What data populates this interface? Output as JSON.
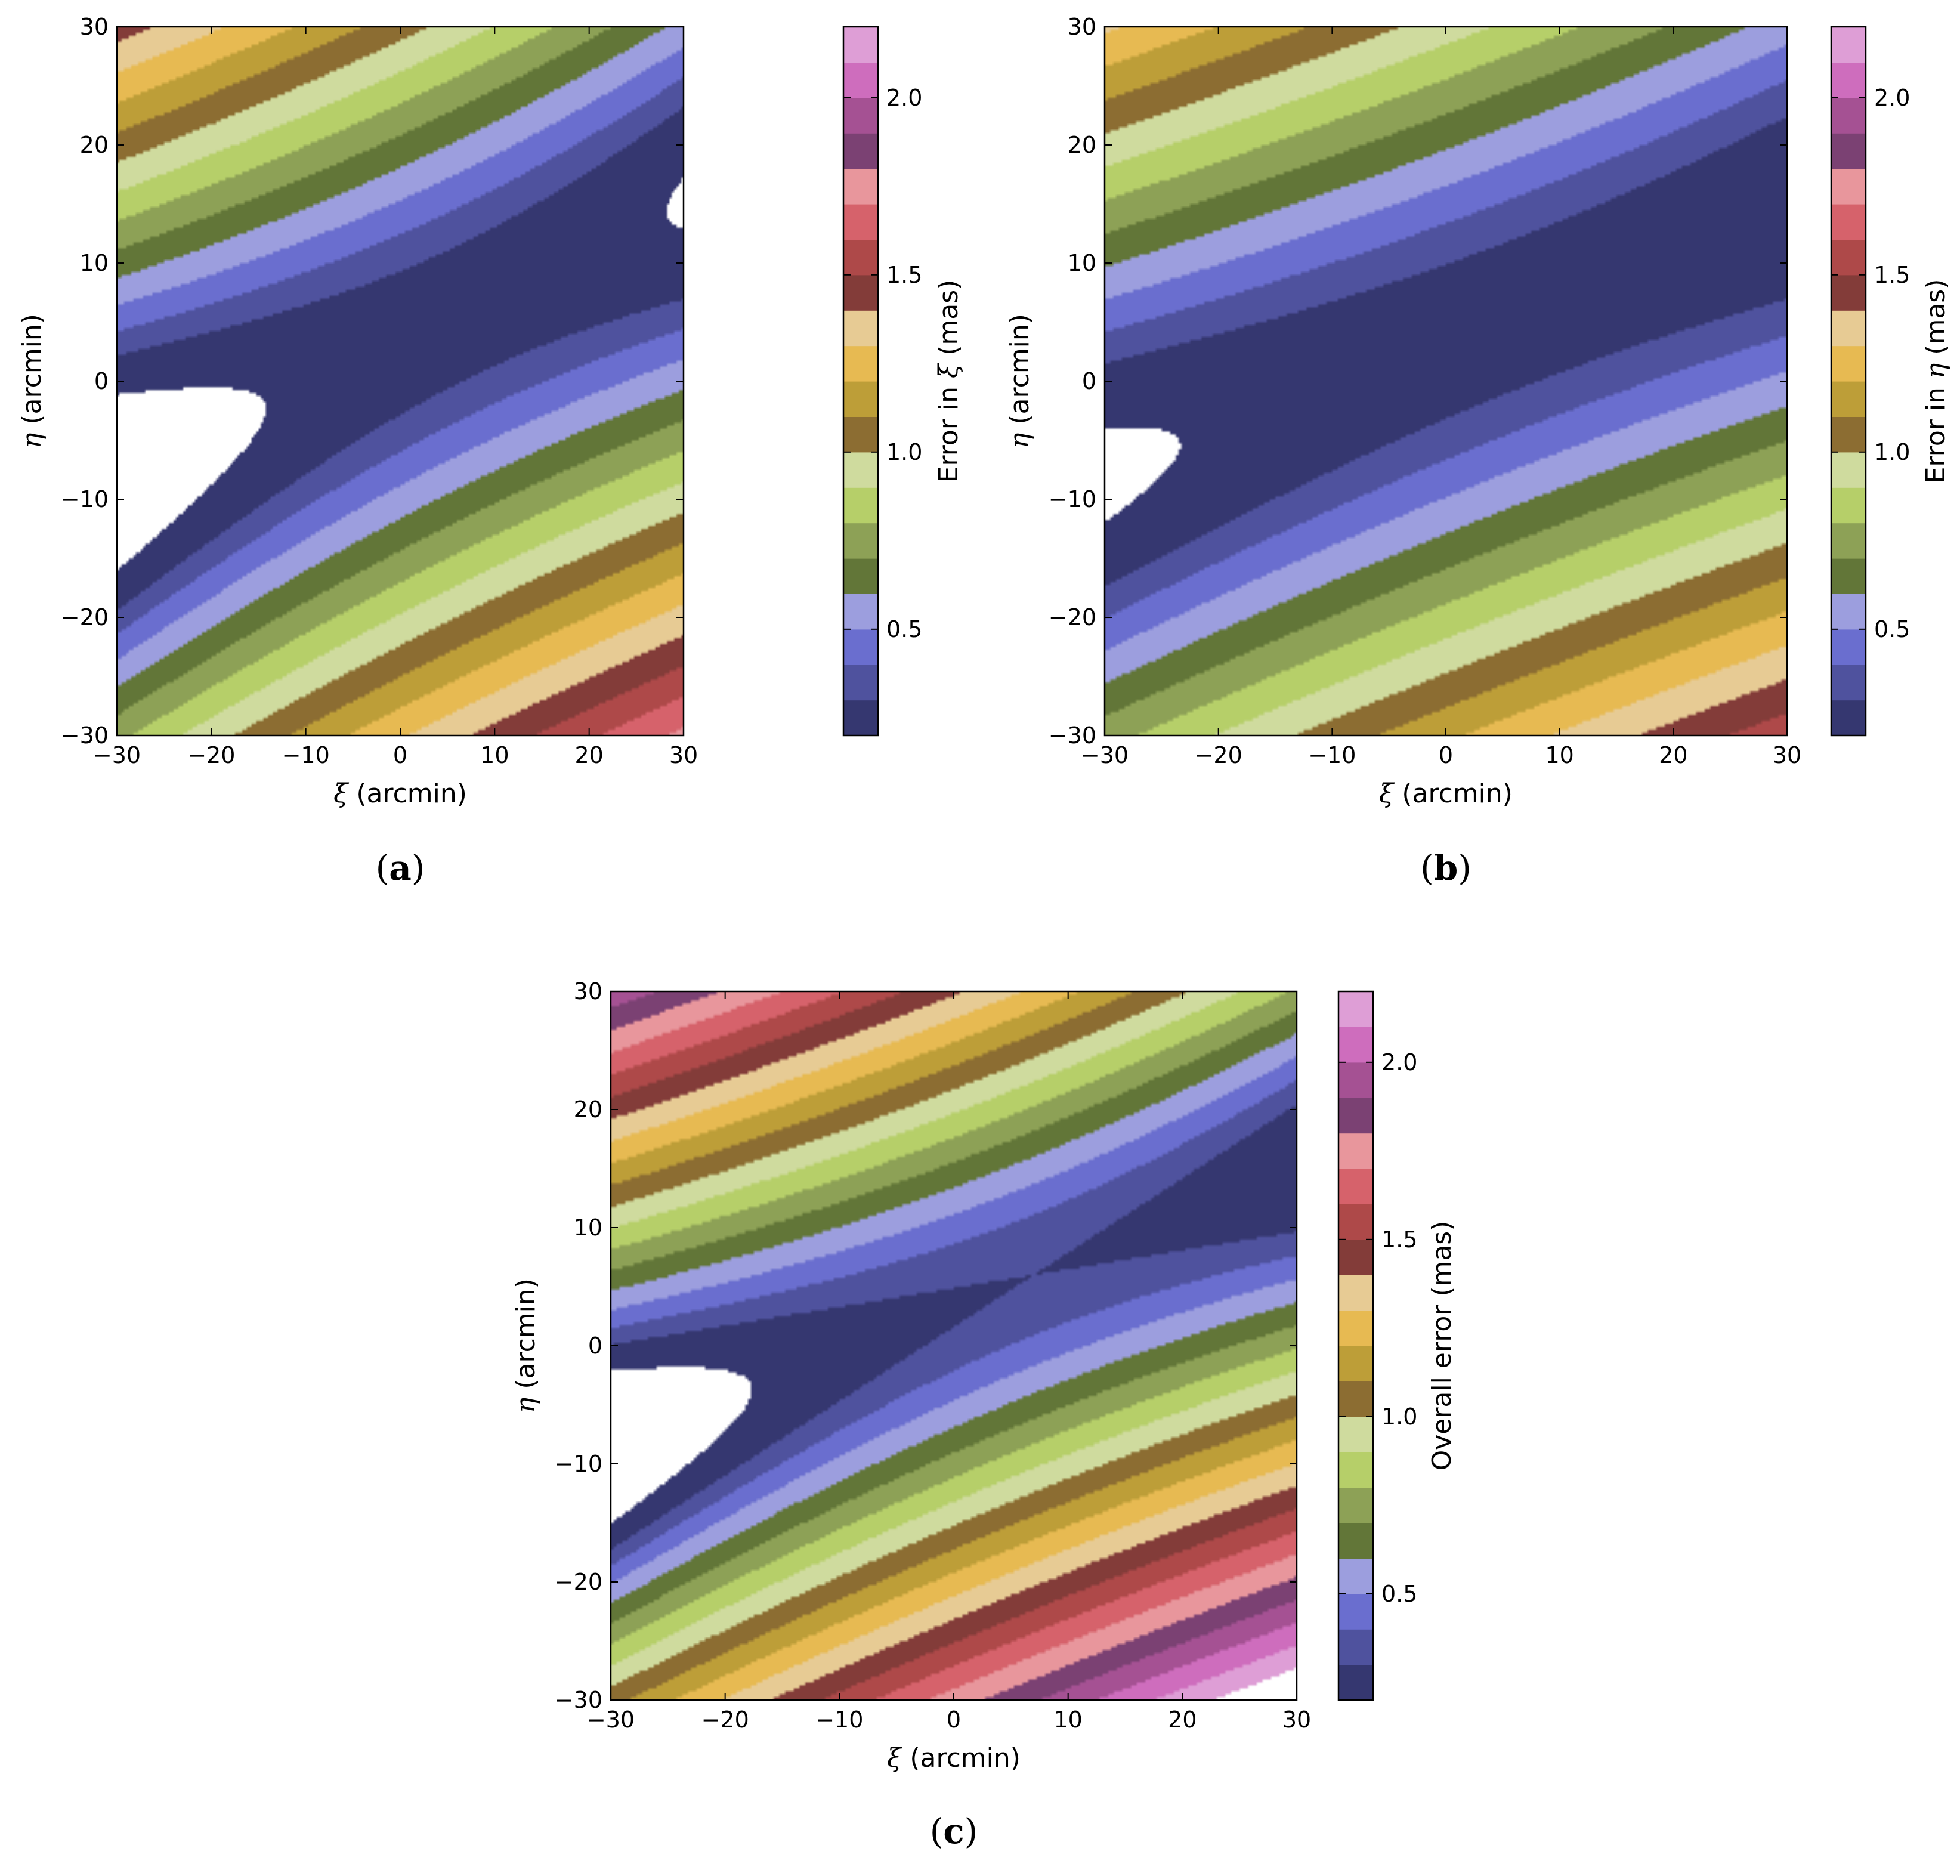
{
  "colorbar_palette": [
    "#353770",
    "#4f529e",
    "#6a6ecf",
    "#9c9ede",
    "#627638",
    "#8da156",
    "#b6cf69",
    "#cfdb9e",
    "#8c6d32",
    "#bd9e38",
    "#e7ba52",
    "#e7cb94",
    "#833c39",
    "#ae4949",
    "#d6626b",
    "#e8969c",
    "#7b4173",
    "#a55193",
    "#ce6dbd",
    "#de9ed6"
  ],
  "colorbar_levels": [
    0.2,
    0.3,
    0.4,
    0.5,
    0.6,
    0.7,
    0.8,
    0.9,
    1.0,
    1.1,
    1.2,
    1.3,
    1.4,
    1.5,
    1.6,
    1.7,
    1.8,
    1.9,
    2.0,
    2.1,
    2.2
  ],
  "chart_data": [
    {
      "type": "contourf",
      "panel_label": "a",
      "xlabel": {
        "symbol": "ξ",
        "unit": "(arcmin)"
      },
      "ylabel": {
        "symbol": "η",
        "unit": "(arcmin)"
      },
      "colorbar_label": {
        "prefix": "Error in",
        "symbol": "ξ",
        "unit": "(mas)"
      },
      "xlim": [
        -30,
        30
      ],
      "ylim": [
        -30,
        30
      ],
      "xticks": [
        -30,
        -20,
        -10,
        0,
        10,
        20,
        30
      ],
      "yticks": [
        -30,
        -20,
        -10,
        0,
        10,
        20,
        30
      ],
      "colorbar_ticks": [
        "0.5",
        "1.0",
        "1.5",
        "2.0"
      ],
      "colorbar_tick_values": [
        0.5,
        1.0,
        1.5,
        2.0
      ],
      "field": {
        "center": [
          7,
          6
        ],
        "min": 0.2,
        "c_xx": 0.00014,
        "c_xy": -0.00058,
        "c_yy": 0.00147
      }
    },
    {
      "type": "contourf",
      "panel_label": "b",
      "xlabel": {
        "symbol": "ξ",
        "unit": "(arcmin)"
      },
      "ylabel": {
        "symbol": "η",
        "unit": "(arcmin)"
      },
      "colorbar_label": {
        "prefix": "Error in",
        "symbol": "η",
        "unit": "(mas)"
      },
      "xlim": [
        -30,
        30
      ],
      "ylim": [
        -30,
        30
      ],
      "xticks": [
        -30,
        -20,
        -10,
        0,
        10,
        20,
        30
      ],
      "yticks": [
        -30,
        -20,
        -10,
        0,
        10,
        20,
        30
      ],
      "colorbar_ticks": [
        "0.5",
        "1.0",
        "1.5",
        "2.0"
      ],
      "colorbar_tick_values": [
        0.5,
        1.0,
        1.5,
        2.0
      ],
      "field": {
        "center": [
          7,
          6
        ],
        "min": 0.2,
        "c_xx": 0.00013,
        "c_xy": -0.00046,
        "c_yy": 0.00122
      }
    },
    {
      "type": "contourf",
      "panel_label": "c",
      "xlabel": {
        "symbol": "ξ",
        "unit": "(arcmin)"
      },
      "ylabel": {
        "symbol": "η",
        "unit": "(arcmin)"
      },
      "colorbar_label": {
        "prefix": "Overall error",
        "symbol": "",
        "unit": "(mas)"
      },
      "xlim": [
        -30,
        30
      ],
      "ylim": [
        -30,
        30
      ],
      "xticks": [
        -30,
        -20,
        -10,
        0,
        10,
        20,
        30
      ],
      "yticks": [
        -30,
        -20,
        -10,
        0,
        10,
        20,
        30
      ],
      "colorbar_ticks": [
        "0.5",
        "1.0",
        "1.5",
        "2.0"
      ],
      "colorbar_tick_values": [
        0.5,
        1.0,
        1.5,
        2.0
      ],
      "field": {
        "center": [
          7,
          6
        ],
        "min": 0.3,
        "c_xx": 0.00027,
        "c_xy": -0.00106,
        "c_yy": 0.00269
      }
    }
  ]
}
